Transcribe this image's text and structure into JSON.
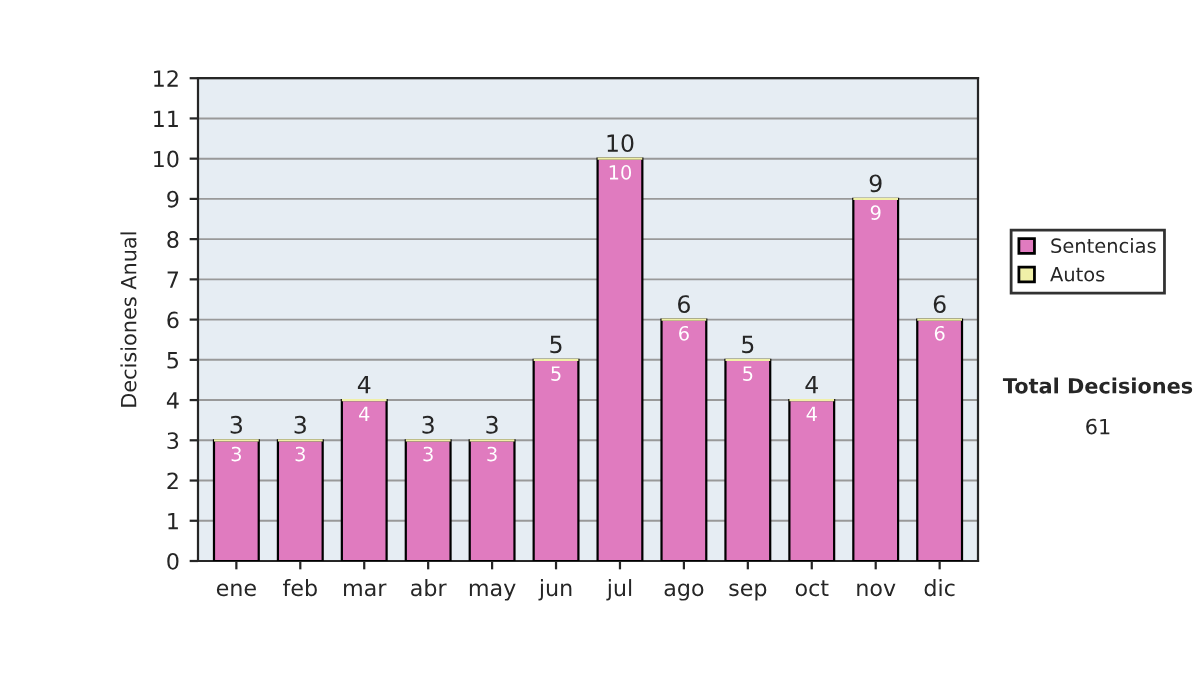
{
  "chart_data": {
    "type": "bar",
    "stacked": true,
    "ylabel": "Decisiones Anual",
    "categories": [
      "ene",
      "feb",
      "mar",
      "abr",
      "may",
      "jun",
      "jul",
      "ago",
      "sep",
      "oct",
      "nov",
      "dic"
    ],
    "series": [
      {
        "name": "Sentencias",
        "color": "#e07bbf",
        "values": [
          3,
          3,
          4,
          3,
          3,
          5,
          10,
          6,
          5,
          4,
          9,
          6
        ],
        "value_labels": [
          "3",
          "3",
          "4",
          "3",
          "3",
          "5",
          "10",
          "6",
          "5",
          "4",
          "9",
          "6"
        ]
      },
      {
        "name": "Autos",
        "color": "#f0f0a8",
        "values": [
          0,
          0,
          0,
          0,
          0,
          0,
          0,
          0,
          0,
          0,
          0,
          0
        ]
      }
    ],
    "totals": [
      "3",
      "3",
      "4",
      "3",
      "3",
      "5",
      "10",
      "6",
      "5",
      "4",
      "9",
      "6"
    ],
    "ylim": [
      0,
      12
    ],
    "yticks": [
      0,
      1,
      2,
      3,
      4,
      5,
      6,
      7,
      8,
      9,
      10,
      11,
      12
    ],
    "grid": "y",
    "legend": "right",
    "annotations": [
      "Total Decisiones",
      "61"
    ]
  }
}
